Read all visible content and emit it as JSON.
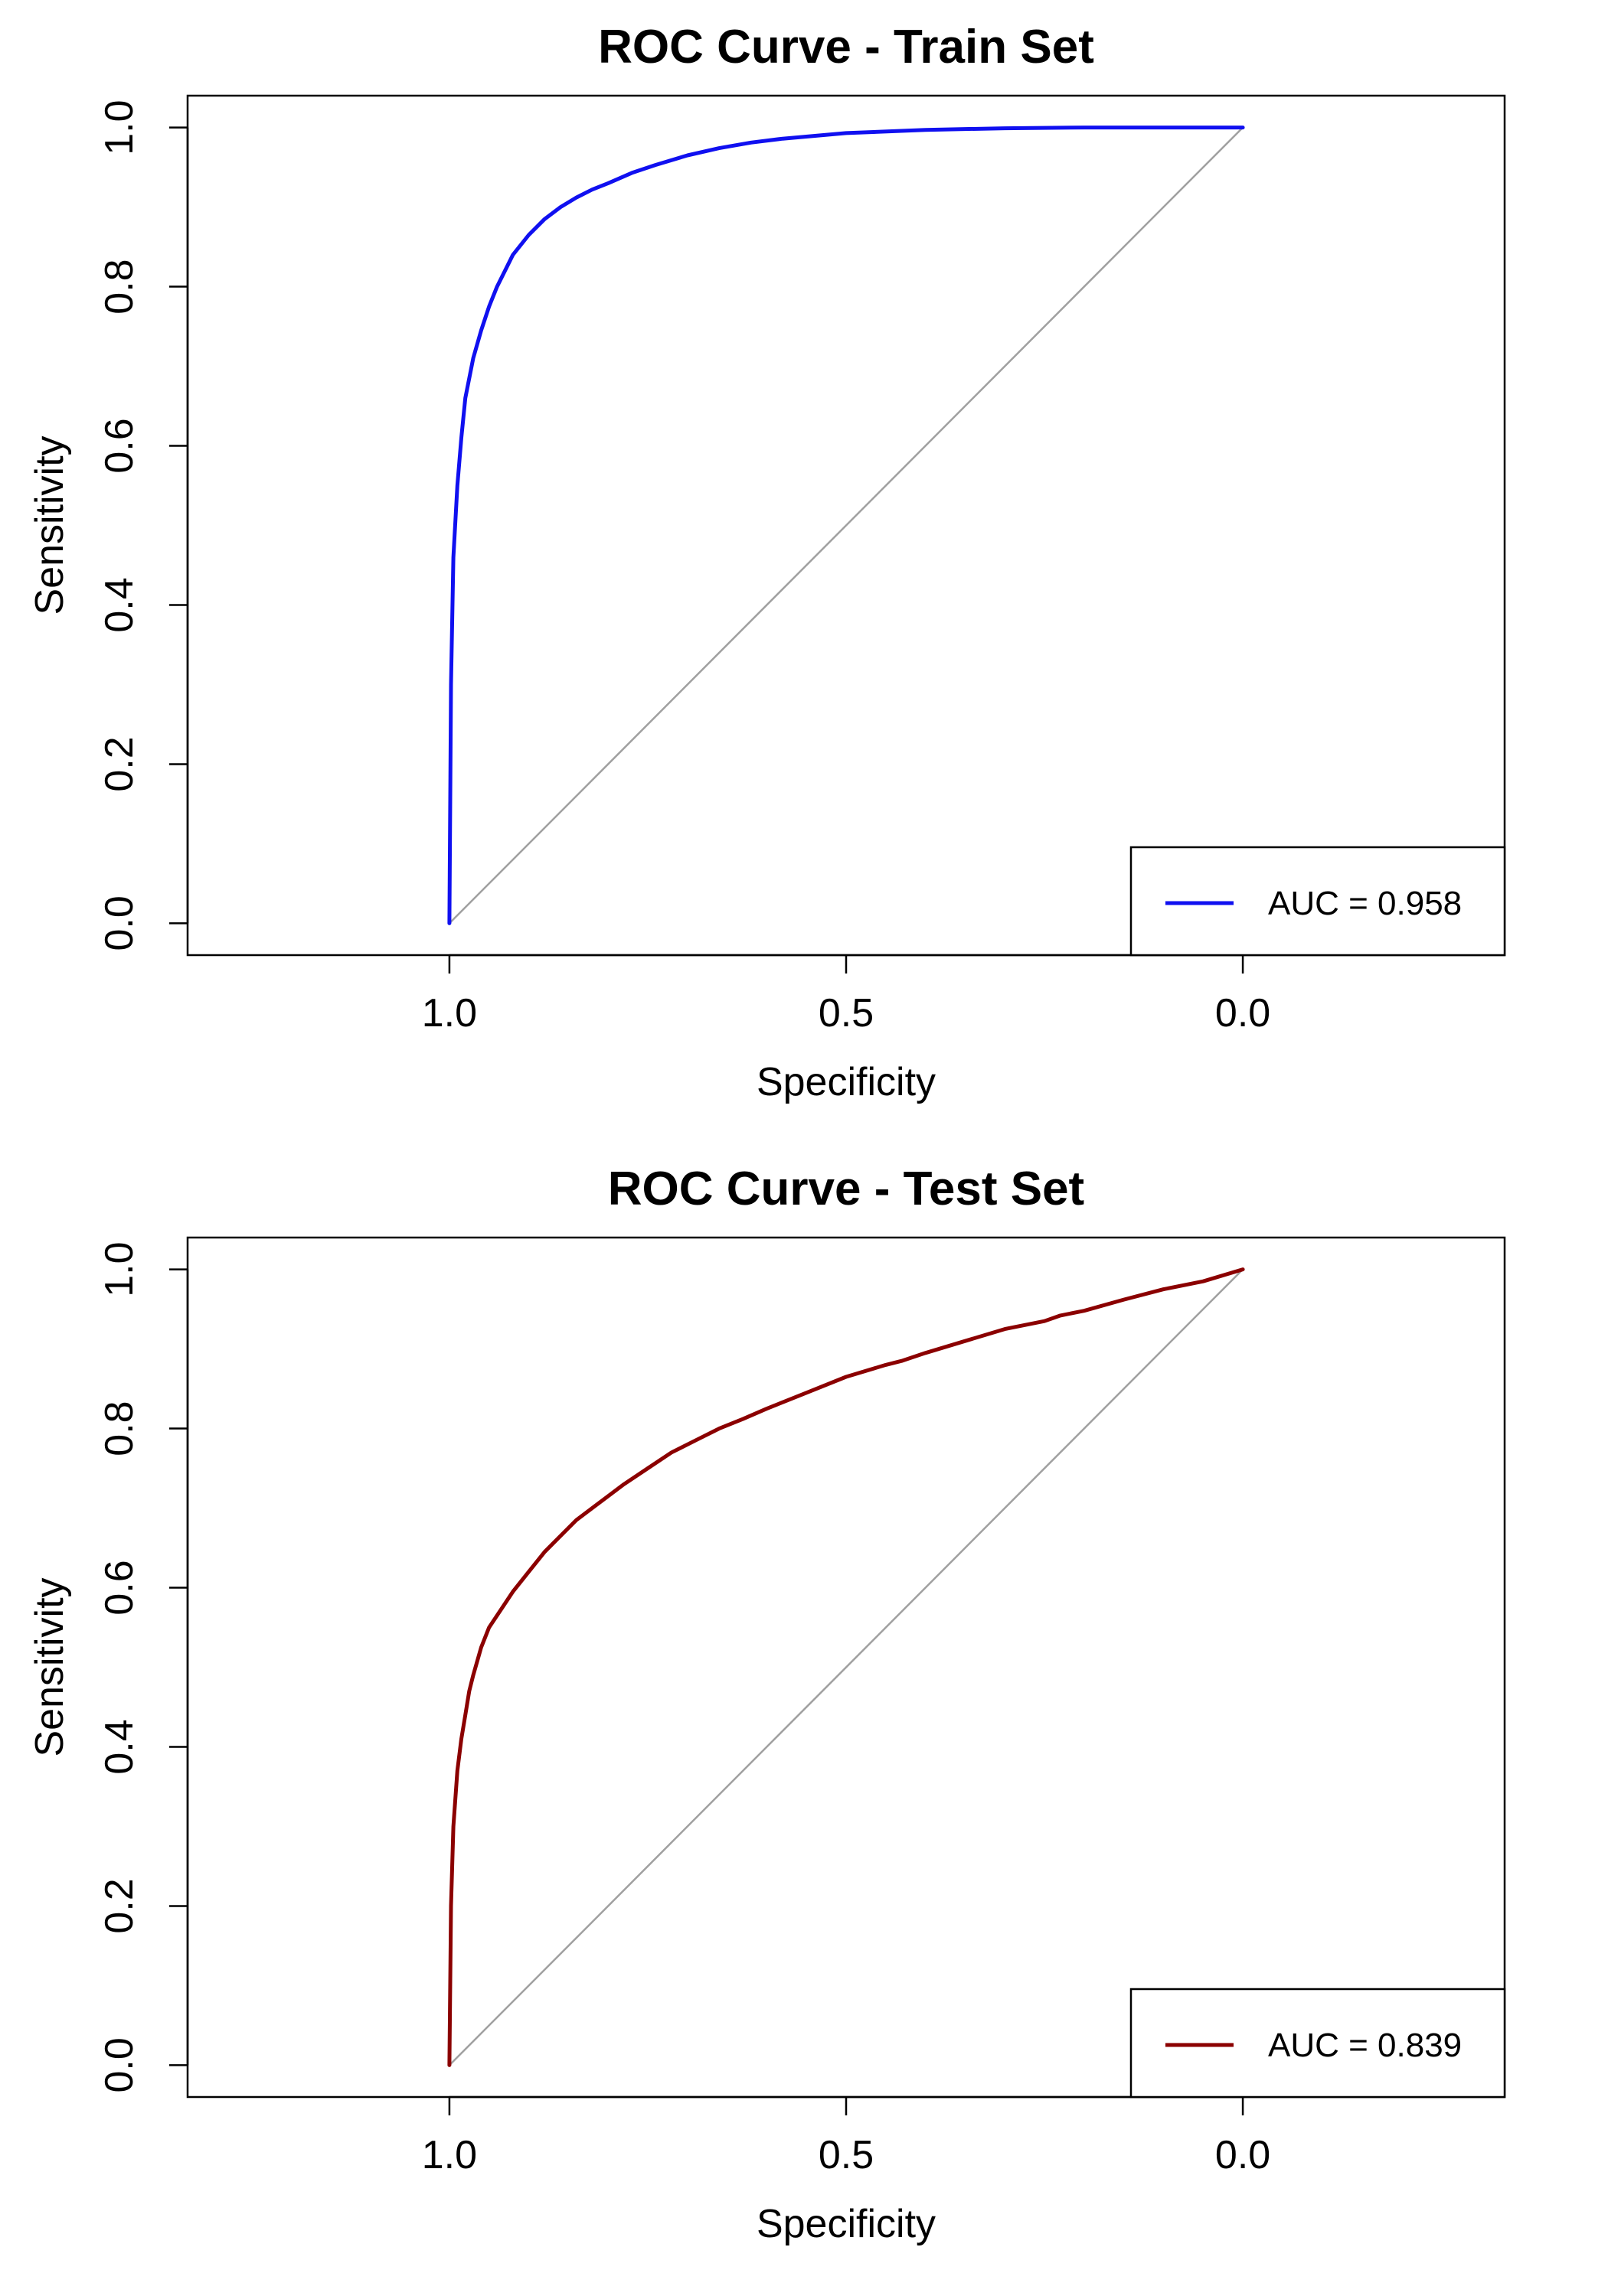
{
  "chart_data": [
    {
      "type": "line",
      "title": "ROC Curve - Train Set",
      "xlabel": "Specificity",
      "ylabel": "Sensitivity",
      "x_reversed": true,
      "xlim": [
        1.33,
        -0.33
      ],
      "ylim": [
        -0.04,
        1.04
      ],
      "x_ticks": [
        {
          "value": 1.0,
          "label": "1.0"
        },
        {
          "value": 0.5,
          "label": "0.5"
        },
        {
          "value": 0.0,
          "label": "0.0"
        }
      ],
      "y_ticks": [
        {
          "value": 0.0,
          "label": "0.0"
        },
        {
          "value": 0.2,
          "label": "0.2"
        },
        {
          "value": 0.4,
          "label": "0.4"
        },
        {
          "value": 0.6,
          "label": "0.6"
        },
        {
          "value": 0.8,
          "label": "0.8"
        },
        {
          "value": 1.0,
          "label": "1.0"
        }
      ],
      "reference_line": {
        "x": [
          1.0,
          0.0
        ],
        "y": [
          0.0,
          1.0
        ],
        "color": "#A0A0A0"
      },
      "legend": {
        "position": "bottom-right",
        "text": "AUC = 0.958"
      },
      "series": [
        {
          "color": "#1010F0",
          "x": [
            1.0,
            0.998,
            0.995,
            0.99,
            0.985,
            0.98,
            0.97,
            0.96,
            0.95,
            0.94,
            0.93,
            0.92,
            0.9,
            0.88,
            0.86,
            0.84,
            0.82,
            0.8,
            0.77,
            0.74,
            0.7,
            0.66,
            0.62,
            0.58,
            0.5,
            0.4,
            0.3,
            0.2,
            0.1,
            0.0
          ],
          "y": [
            0.0,
            0.3,
            0.46,
            0.55,
            0.61,
            0.66,
            0.71,
            0.745,
            0.775,
            0.8,
            0.82,
            0.84,
            0.865,
            0.885,
            0.9,
            0.912,
            0.922,
            0.93,
            0.943,
            0.953,
            0.965,
            0.974,
            0.981,
            0.986,
            0.993,
            0.997,
            0.999,
            1.0,
            1.0,
            1.0
          ]
        }
      ]
    },
    {
      "type": "line",
      "title": "ROC Curve - Test Set",
      "xlabel": "Specificity",
      "ylabel": "Sensitivity",
      "x_reversed": true,
      "xlim": [
        1.33,
        -0.33
      ],
      "ylim": [
        -0.04,
        1.04
      ],
      "x_ticks": [
        {
          "value": 1.0,
          "label": "1.0"
        },
        {
          "value": 0.5,
          "label": "0.5"
        },
        {
          "value": 0.0,
          "label": "0.0"
        }
      ],
      "y_ticks": [
        {
          "value": 0.0,
          "label": "0.0"
        },
        {
          "value": 0.2,
          "label": "0.2"
        },
        {
          "value": 0.4,
          "label": "0.4"
        },
        {
          "value": 0.6,
          "label": "0.6"
        },
        {
          "value": 0.8,
          "label": "0.8"
        },
        {
          "value": 1.0,
          "label": "1.0"
        }
      ],
      "reference_line": {
        "x": [
          1.0,
          0.0
        ],
        "y": [
          0.0,
          1.0
        ],
        "color": "#A0A0A0"
      },
      "legend": {
        "position": "bottom-right",
        "text": "AUC = 0.839"
      },
      "series": [
        {
          "color": "#8B0000",
          "x": [
            1.0,
            0.998,
            0.995,
            0.99,
            0.985,
            0.98,
            0.975,
            0.97,
            0.96,
            0.95,
            0.94,
            0.93,
            0.92,
            0.9,
            0.88,
            0.86,
            0.84,
            0.82,
            0.8,
            0.78,
            0.75,
            0.72,
            0.69,
            0.66,
            0.63,
            0.6,
            0.55,
            0.5,
            0.45,
            0.43,
            0.4,
            0.35,
            0.3,
            0.25,
            0.23,
            0.2,
            0.15,
            0.1,
            0.05,
            0.0
          ],
          "y": [
            0.0,
            0.2,
            0.3,
            0.37,
            0.41,
            0.44,
            0.47,
            0.49,
            0.525,
            0.55,
            0.565,
            0.58,
            0.595,
            0.62,
            0.645,
            0.665,
            0.685,
            0.7,
            0.715,
            0.73,
            0.75,
            0.77,
            0.785,
            0.8,
            0.812,
            0.825,
            0.845,
            0.865,
            0.88,
            0.885,
            0.895,
            0.91,
            0.925,
            0.935,
            0.942,
            0.948,
            0.962,
            0.975,
            0.985,
            1.0
          ]
        }
      ]
    }
  ]
}
